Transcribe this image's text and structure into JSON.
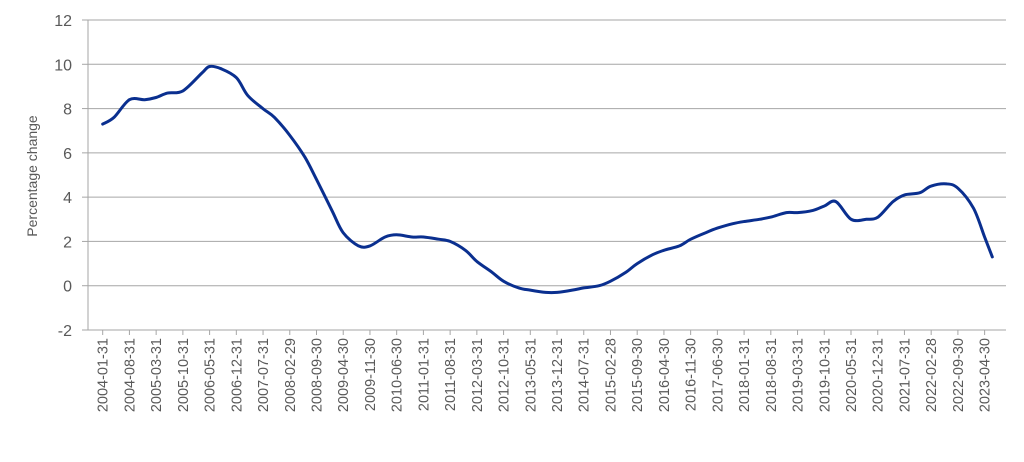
{
  "chart_data": {
    "type": "line",
    "title": "",
    "xlabel": "",
    "ylabel": "Percentage change",
    "ylim": [
      -2,
      12
    ],
    "yticks": [
      -2,
      0,
      2,
      4,
      6,
      8,
      10,
      12
    ],
    "grid": true,
    "legend": "none",
    "x_tick_labels": [
      "2004-01-31",
      "2004-08-31",
      "2005-03-31",
      "2005-10-31",
      "2006-05-31",
      "2006-12-31",
      "2007-07-31",
      "2008-02-29",
      "2008-09-30",
      "2009-04-30",
      "2009-11-30",
      "2010-06-30",
      "2011-01-31",
      "2011-08-31",
      "2012-03-31",
      "2012-10-31",
      "2013-05-31",
      "2013-12-31",
      "2014-07-31",
      "2015-02-28",
      "2015-09-30",
      "2016-04-30",
      "2016-11-30",
      "2017-06-30",
      "2018-01-31",
      "2018-08-31",
      "2019-03-31",
      "2019-10-31",
      "2020-05-31",
      "2020-12-31",
      "2021-07-31",
      "2022-02-28",
      "2022-09-30",
      "2023-04-30"
    ],
    "series": [
      {
        "color": "#0a2f8f",
        "x": [
          "2004-01-31",
          "2004-04-30",
          "2004-08-31",
          "2004-12-31",
          "2005-03-31",
          "2005-06-30",
          "2005-10-31",
          "2006-03-31",
          "2006-05-31",
          "2006-08-31",
          "2006-12-31",
          "2007-03-31",
          "2007-07-31",
          "2007-10-31",
          "2008-02-29",
          "2008-06-30",
          "2008-09-30",
          "2009-01-31",
          "2009-04-30",
          "2009-08-31",
          "2009-11-30",
          "2010-03-31",
          "2010-06-30",
          "2010-10-31",
          "2011-01-31",
          "2011-05-31",
          "2011-08-31",
          "2011-12-31",
          "2012-03-31",
          "2012-07-31",
          "2012-10-31",
          "2013-02-28",
          "2013-05-31",
          "2013-09-30",
          "2013-12-31",
          "2014-04-30",
          "2014-07-31",
          "2014-11-30",
          "2015-02-28",
          "2015-06-30",
          "2015-09-30",
          "2016-01-31",
          "2016-04-30",
          "2016-08-31",
          "2016-11-30",
          "2017-03-31",
          "2017-06-30",
          "2017-10-31",
          "2018-01-31",
          "2018-05-31",
          "2018-08-31",
          "2018-12-31",
          "2019-03-31",
          "2019-07-31",
          "2019-10-31",
          "2020-01-31",
          "2020-05-31",
          "2020-09-30",
          "2020-12-31",
          "2021-04-30",
          "2021-07-31",
          "2021-11-30",
          "2022-02-28",
          "2022-06-30",
          "2022-09-30",
          "2023-01-31",
          "2023-04-30",
          "2023-06-30"
        ],
        "values": [
          7.3,
          7.6,
          8.4,
          8.4,
          8.5,
          8.7,
          8.8,
          9.6,
          9.9,
          9.8,
          9.4,
          8.6,
          8.0,
          7.6,
          6.8,
          5.8,
          4.8,
          3.4,
          2.4,
          1.8,
          1.8,
          2.2,
          2.3,
          2.2,
          2.2,
          2.1,
          2.0,
          1.6,
          1.1,
          0.6,
          0.2,
          -0.1,
          -0.2,
          -0.3,
          -0.3,
          -0.2,
          -0.1,
          0.0,
          0.2,
          0.6,
          1.0,
          1.4,
          1.6,
          1.8,
          2.1,
          2.4,
          2.6,
          2.8,
          2.9,
          3.0,
          3.1,
          3.3,
          3.3,
          3.4,
          3.6,
          3.8,
          3.0,
          3.0,
          3.1,
          3.8,
          4.1,
          4.2,
          4.5,
          4.6,
          4.4,
          3.5,
          2.2,
          1.3
        ]
      }
    ]
  }
}
